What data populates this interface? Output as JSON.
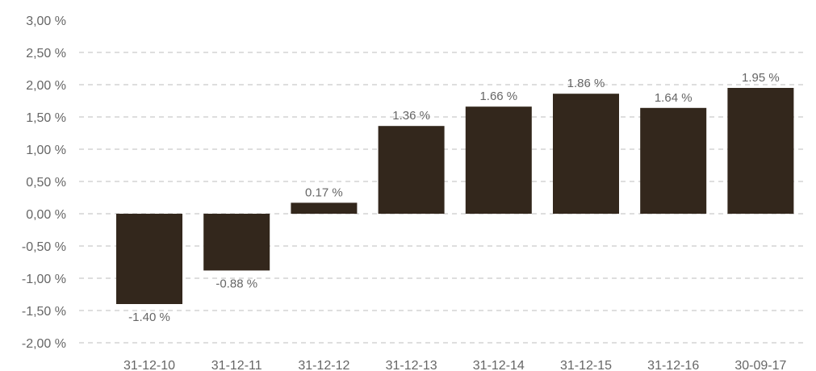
{
  "chart_data": {
    "type": "bar",
    "categories": [
      "31-12-10",
      "31-12-11",
      "31-12-12",
      "31-12-13",
      "31-12-14",
      "31-12-15",
      "31-12-16",
      "30-09-17"
    ],
    "series": [
      {
        "values": [
          -1.4,
          -0.88,
          0.17,
          1.36,
          1.66,
          1.86,
          1.64,
          1.95
        ],
        "data_labels": [
          "-1.40 %",
          "-0.88 %",
          "0.17 %",
          "1.36 %",
          "1.66 %",
          "1.86 %",
          "1.64 %",
          "1.95 %"
        ],
        "color": "#33271c"
      }
    ],
    "yticks": [
      3.0,
      2.5,
      2.0,
      1.5,
      1.0,
      0.5,
      0.0,
      -0.5,
      -1.0,
      -1.5,
      -2.0
    ],
    "ytick_labels": [
      "3,00 %",
      "2,50 %",
      "2,00 %",
      "1,50 %",
      "1,00 %",
      "0,50 %",
      "0,00 %",
      "-0,50 %",
      "-1,00 %",
      "-1,50 %",
      "-2,00 %"
    ],
    "ylim": [
      -2.0,
      3.0
    ],
    "title": "",
    "xlabel": "",
    "ylabel": "",
    "grid": "horizontal dashed",
    "legend": "none",
    "colors": {
      "bar": "#33271c",
      "grid": "#bdbdbd",
      "text": "#666666"
    }
  }
}
